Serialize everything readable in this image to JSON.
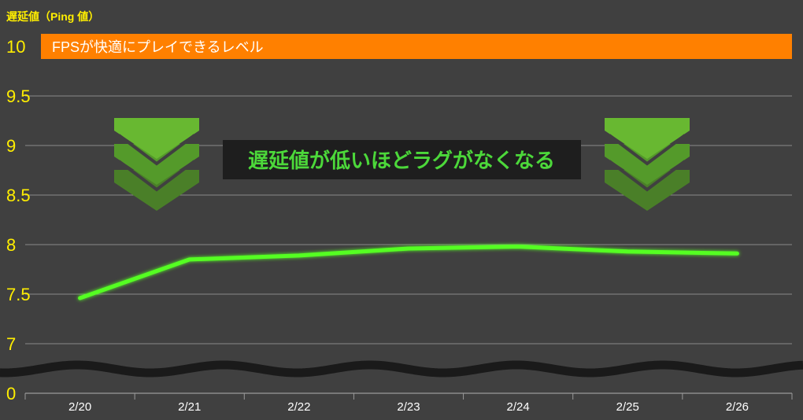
{
  "chart_data": {
    "type": "line",
    "ylabel": "遅延値（Ping 値）",
    "categories": [
      "2/20",
      "2/21",
      "2/22",
      "2/23",
      "2/24",
      "2/25",
      "2/26"
    ],
    "series": [
      {
        "values": [
          7.46,
          7.85,
          7.89,
          7.96,
          7.98,
          7.93,
          7.91
        ]
      }
    ],
    "y_ticks": [
      "0",
      "7",
      "7.5",
      "8",
      "8.5",
      "9",
      "9.5",
      "10"
    ],
    "y_range_main": [
      7,
      10
    ],
    "axis_break": true,
    "grid": true,
    "reference_band": {
      "label": "FPSが快適にプレイできるレベル",
      "value": 10
    },
    "annotation": "遅延値が低いほどラグがなくなる",
    "colors": {
      "background": "#404040",
      "line": "#55ff22",
      "band": "#ff8000",
      "tick": "#ffee00",
      "arrow": "#5aad2a"
    },
    "icons": [
      "chevron-down-icon",
      "chevron-down-icon"
    ]
  }
}
